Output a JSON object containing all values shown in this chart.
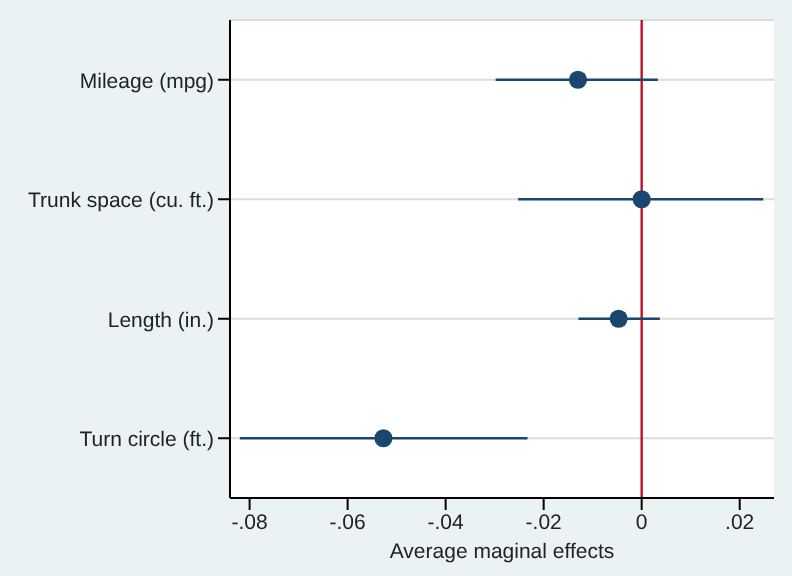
{
  "chart_data": {
    "type": "scatter",
    "orientation": "horizontal",
    "xlabel": "Average maginal effects",
    "categories": [
      "Mileage (mpg)",
      "Trunk space (cu. ft.)",
      "Length (in.)",
      "Turn circle (ft.)"
    ],
    "values": [
      -0.013,
      0,
      -0.0047,
      -0.0527
    ],
    "errors": [
      [
        -0.0298,
        0.0033
      ],
      [
        -0.0252,
        0.0248
      ],
      [
        -0.0129,
        0.0037
      ],
      [
        -0.082,
        -0.0233
      ]
    ],
    "color": "#1a476f",
    "marker": "circle",
    "grid": "y",
    "xlim": [
      -0.084,
      0.027
    ],
    "xticks": [
      {
        "value": -0.08,
        "label": "-.08"
      },
      {
        "value": -0.06,
        "label": "-.06"
      },
      {
        "value": -0.04,
        "label": "-.04"
      },
      {
        "value": -0.02,
        "label": "-.02"
      },
      {
        "value": 0,
        "label": "0"
      },
      {
        "value": 0.02,
        "label": ".02"
      }
    ],
    "ref_lines": [
      {
        "axis": "x",
        "value": 0,
        "color": "#c0102a"
      }
    ]
  }
}
